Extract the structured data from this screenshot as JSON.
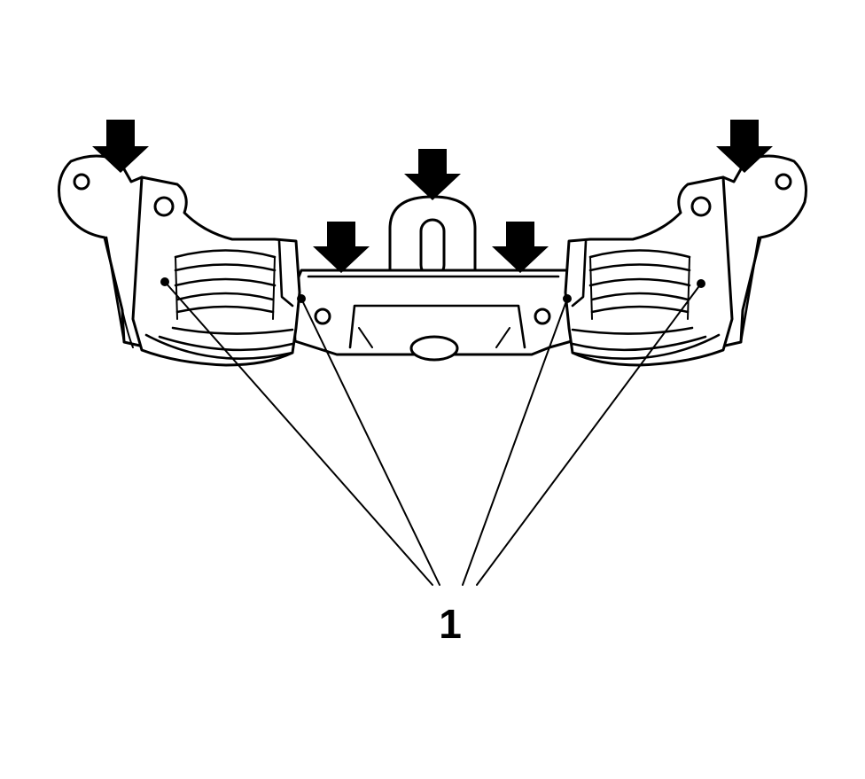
{
  "figure": {
    "callout_label": "1",
    "arrow_count": 5,
    "leader_count": 4,
    "colors": {
      "ink": "#000000",
      "paper": "#ffffff"
    }
  }
}
